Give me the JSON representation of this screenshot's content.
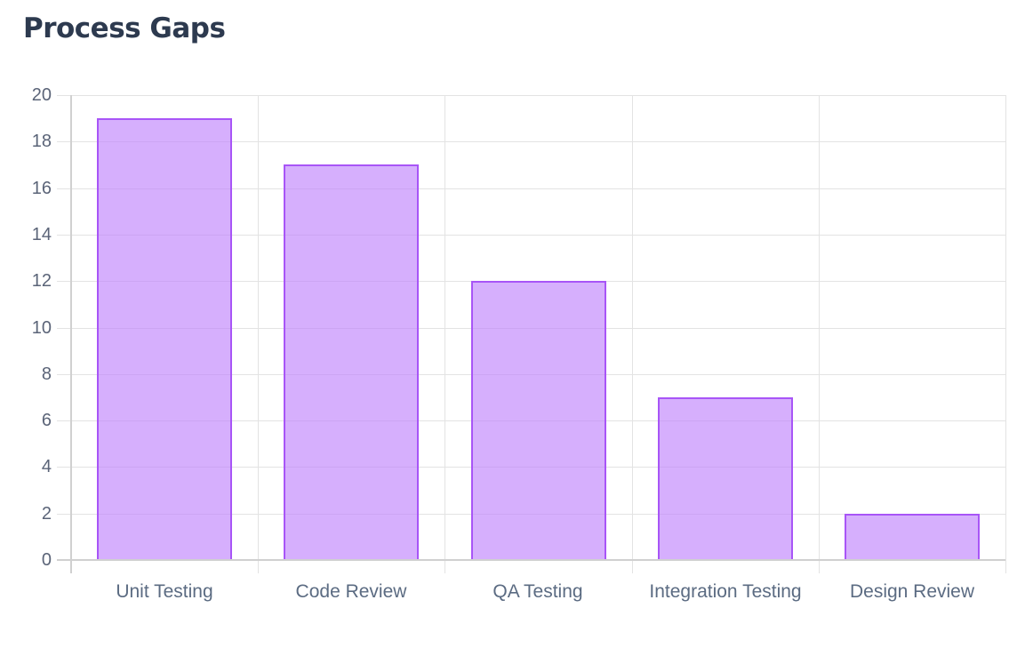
{
  "header": {
    "title": "Process Gaps"
  },
  "chart_data": {
    "type": "bar",
    "title": "Process Gaps",
    "categories": [
      "Unit Testing",
      "Code Review",
      "QA Testing",
      "Integration Testing",
      "Design Review"
    ],
    "values": [
      19,
      17,
      12,
      7,
      2
    ],
    "xlabel": "",
    "ylabel": "",
    "ylim": [
      0,
      20
    ],
    "yticks": [
      "0",
      "2",
      "4",
      "6",
      "8",
      "10",
      "12",
      "14",
      "16",
      "18",
      "20"
    ],
    "grid": true,
    "legend": null,
    "colors": {
      "bar_fill": "#d4a8fc",
      "bar_border": "#a855f7",
      "title": "#2d3a4f",
      "tick_text": "#5b6478"
    }
  }
}
